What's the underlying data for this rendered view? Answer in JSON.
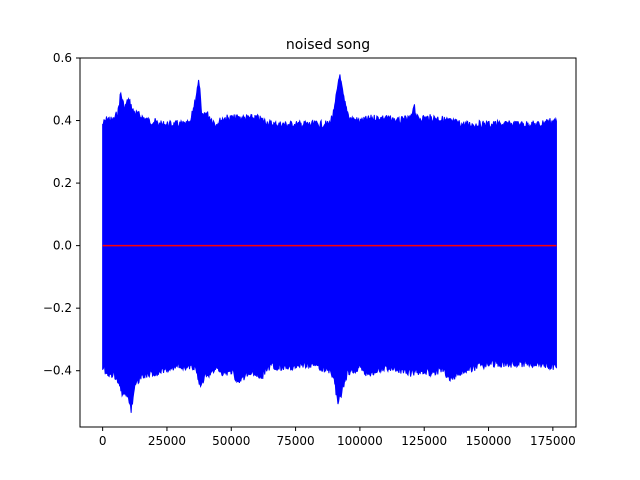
{
  "chart_data": {
    "type": "line",
    "title": "noised song",
    "xlabel": "",
    "ylabel": "",
    "xlim": [
      -8800,
      184000
    ],
    "ylim": [
      -0.58,
      0.6
    ],
    "x_ticks": [
      0,
      25000,
      50000,
      75000,
      100000,
      125000,
      150000,
      175000
    ],
    "x_tick_labels": [
      "0",
      "25000",
      "50000",
      "75000",
      "100000",
      "125000",
      "150000",
      "175000"
    ],
    "y_ticks": [
      -0.4,
      -0.2,
      0.0,
      0.2,
      0.4,
      0.6
    ],
    "y_tick_labels": [
      "−0.4",
      "−0.2",
      "0.0",
      "0.2",
      "0.4",
      "0.6"
    ],
    "grid": false,
    "legend": "none",
    "series": [
      {
        "color": "#0000ff",
        "sample_count": 176400,
        "upper_envelope": [
          [
            0,
            0.4
          ],
          [
            2000,
            0.42
          ],
          [
            4000,
            0.41
          ],
          [
            6000,
            0.44
          ],
          [
            7000,
            0.5
          ],
          [
            8500,
            0.45
          ],
          [
            10000,
            0.48
          ],
          [
            12000,
            0.44
          ],
          [
            14000,
            0.43
          ],
          [
            16000,
            0.42
          ],
          [
            18000,
            0.41
          ],
          [
            20000,
            0.41
          ],
          [
            22000,
            0.4
          ],
          [
            26000,
            0.4
          ],
          [
            30000,
            0.4
          ],
          [
            34000,
            0.4
          ],
          [
            37500,
            0.54
          ],
          [
            38500,
            0.42
          ],
          [
            40000,
            0.44
          ],
          [
            42000,
            0.42
          ],
          [
            44000,
            0.4
          ],
          [
            47000,
            0.42
          ],
          [
            50000,
            0.42
          ],
          [
            53000,
            0.42
          ],
          [
            56000,
            0.42
          ],
          [
            60000,
            0.42
          ],
          [
            63000,
            0.41
          ],
          [
            66000,
            0.4
          ],
          [
            70000,
            0.4
          ],
          [
            75000,
            0.4
          ],
          [
            80000,
            0.4
          ],
          [
            85000,
            0.4
          ],
          [
            88000,
            0.4
          ],
          [
            90000,
            0.44
          ],
          [
            92000,
            0.56
          ],
          [
            94000,
            0.47
          ],
          [
            96000,
            0.42
          ],
          [
            100000,
            0.41
          ],
          [
            105000,
            0.42
          ],
          [
            110000,
            0.42
          ],
          [
            115000,
            0.41
          ],
          [
            120000,
            0.42
          ],
          [
            121000,
            0.47
          ],
          [
            122000,
            0.42
          ],
          [
            126000,
            0.42
          ],
          [
            130000,
            0.42
          ],
          [
            135000,
            0.41
          ],
          [
            140000,
            0.4
          ],
          [
            145000,
            0.4
          ],
          [
            150000,
            0.4
          ],
          [
            155000,
            0.4
          ],
          [
            160000,
            0.4
          ],
          [
            165000,
            0.4
          ],
          [
            170000,
            0.4
          ],
          [
            173000,
            0.41
          ],
          [
            176400,
            0.41
          ]
        ],
        "lower_envelope": [
          [
            0,
            -0.4
          ],
          [
            2000,
            -0.43
          ],
          [
            4000,
            -0.42
          ],
          [
            6000,
            -0.44
          ],
          [
            7500,
            -0.48
          ],
          [
            10000,
            -0.49
          ],
          [
            11000,
            -0.54
          ],
          [
            12500,
            -0.46
          ],
          [
            15000,
            -0.43
          ],
          [
            18000,
            -0.42
          ],
          [
            21000,
            -0.42
          ],
          [
            24000,
            -0.41
          ],
          [
            28000,
            -0.4
          ],
          [
            32000,
            -0.4
          ],
          [
            36000,
            -0.4
          ],
          [
            38000,
            -0.46
          ],
          [
            40000,
            -0.43
          ],
          [
            42000,
            -0.42
          ],
          [
            44000,
            -0.4
          ],
          [
            47000,
            -0.42
          ],
          [
            50000,
            -0.41
          ],
          [
            53000,
            -0.45
          ],
          [
            56000,
            -0.42
          ],
          [
            60000,
            -0.42
          ],
          [
            62000,
            -0.43
          ],
          [
            64000,
            -0.4
          ],
          [
            68000,
            -0.4
          ],
          [
            72000,
            -0.4
          ],
          [
            78000,
            -0.39
          ],
          [
            84000,
            -0.4
          ],
          [
            88000,
            -0.41
          ],
          [
            90000,
            -0.44
          ],
          [
            91500,
            -0.52
          ],
          [
            93000,
            -0.48
          ],
          [
            95000,
            -0.42
          ],
          [
            100000,
            -0.4
          ],
          [
            103000,
            -0.43
          ],
          [
            106000,
            -0.41
          ],
          [
            110000,
            -0.4
          ],
          [
            115000,
            -0.41
          ],
          [
            120000,
            -0.42
          ],
          [
            124000,
            -0.41
          ],
          [
            128000,
            -0.42
          ],
          [
            132000,
            -0.41
          ],
          [
            136000,
            -0.44
          ],
          [
            140000,
            -0.41
          ],
          [
            145000,
            -0.4
          ],
          [
            150000,
            -0.39
          ],
          [
            155000,
            -0.39
          ],
          [
            160000,
            -0.39
          ],
          [
            165000,
            -0.39
          ],
          [
            170000,
            -0.39
          ],
          [
            176400,
            -0.4
          ]
        ]
      },
      {
        "color": "#ff0000",
        "x": [
          0,
          176400
        ],
        "y": [
          0.0,
          0.0
        ]
      }
    ]
  }
}
